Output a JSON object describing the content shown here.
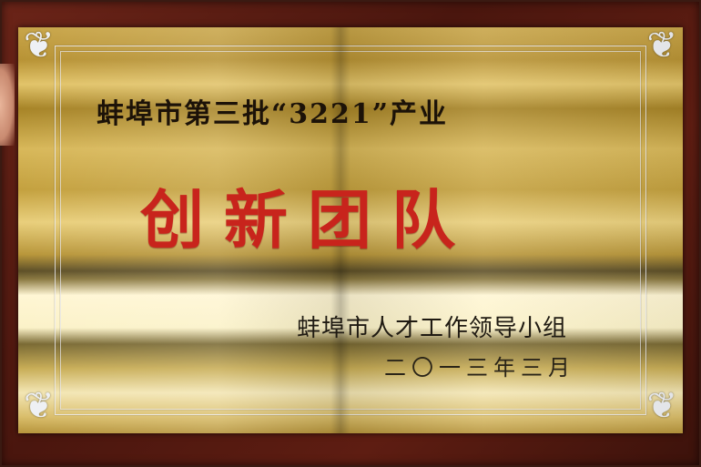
{
  "plaque": {
    "subtitle": "蚌埠市第三批“3221”产业",
    "title": "创新团队",
    "issuer": "蚌埠市人才工作领导小组",
    "date": "二〇一三年三月"
  },
  "colors": {
    "title_red": "#c8241c",
    "frame_wood": "#5e1d12",
    "plate_gold": "#c9a64a"
  },
  "icons": {
    "corner": "floral-corner-ornament"
  }
}
